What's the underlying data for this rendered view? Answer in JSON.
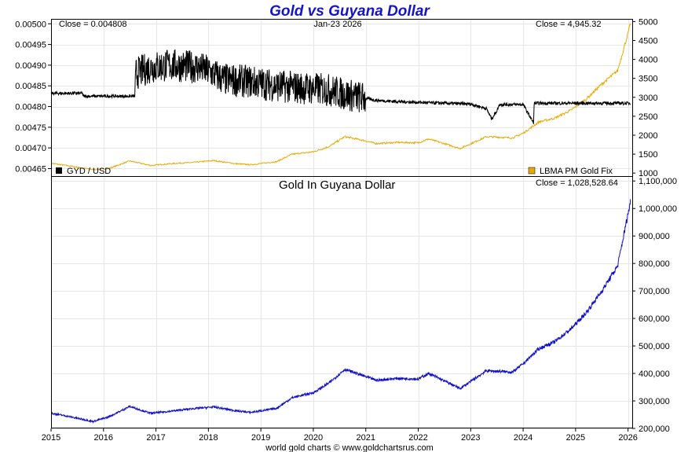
{
  "title": "Gold vs Guyana Dollar",
  "colors": {
    "title": "#1414cc",
    "gyd": "#000000",
    "gold": "#e8a900",
    "gold_gyd": "#1010cc",
    "grid": "#e6e6e6"
  },
  "chart_data": [
    {
      "type": "line",
      "panel": "top",
      "header_left": "Close = 0.004808",
      "header_center": "Jan-23  2026",
      "header_right": "Close = 4,945.32",
      "x_range": [
        2015.0,
        2026.08
      ],
      "y_left": {
        "range": [
          0.00463,
          0.00501
        ],
        "ticks": [
          0.00465,
          0.0047,
          0.00475,
          0.0048,
          0.00485,
          0.0049,
          0.00495,
          0.005
        ],
        "tick_labels": [
          "0.00465",
          "0.00470",
          "0.00475",
          "0.00480",
          "0.00485",
          "0.00490",
          "0.00495",
          "0.00500"
        ]
      },
      "y_right": {
        "range": [
          900,
          5050
        ],
        "ticks": [
          1000,
          1500,
          2000,
          2500,
          3000,
          3500,
          4000,
          4500,
          5000
        ],
        "tick_labels": [
          "1000",
          "1500",
          "2000",
          "2500",
          "3000",
          "3500",
          "4000",
          "4500",
          "5000"
        ]
      },
      "series": [
        {
          "name": "GYD / USD",
          "axis": "left",
          "color": "#000000",
          "x": [
            2015.0,
            2015.6,
            2015.61,
            2016.6,
            2016.62,
            2016.9,
            2017.3,
            2017.8,
            2018.0,
            2018.3,
            2018.8,
            2019.3,
            2019.8,
            2020.3,
            2020.6,
            2020.9,
            2021.2,
            2021.6,
            2022.0,
            2022.5,
            2023.0,
            2023.3,
            2023.4,
            2023.5,
            2023.55,
            2023.8,
            2024.0,
            2024.2,
            2024.21,
            2024.5,
            2025.0,
            2025.5,
            2026.05
          ],
          "values": [
            0.004832,
            0.004832,
            0.004825,
            0.004825,
            0.00488,
            0.004895,
            0.0049,
            0.004895,
            0.004885,
            0.004865,
            0.00486,
            0.00485,
            0.004845,
            0.00484,
            0.00483,
            0.004822,
            0.004815,
            0.004812,
            0.00481,
            0.004808,
            0.004806,
            0.004795,
            0.00477,
            0.00479,
            0.004805,
            0.004805,
            0.004805,
            0.00476,
            0.004808,
            0.004808,
            0.004808,
            0.004808,
            0.004808
          ],
          "noise": 2.5e-05,
          "noise_until": 2021.0
        },
        {
          "name": "LBMA PM Gold Fix",
          "axis": "right",
          "color": "#e8a900",
          "x": [
            2015.0,
            2015.3,
            2015.8,
            2016.1,
            2016.5,
            2016.9,
            2017.3,
            2017.7,
            2018.1,
            2018.5,
            2018.8,
            2019.3,
            2019.6,
            2020.0,
            2020.3,
            2020.6,
            2020.9,
            2021.2,
            2021.6,
            2022.0,
            2022.2,
            2022.8,
            2023.3,
            2023.8,
            2024.0,
            2024.3,
            2024.6,
            2024.9,
            2025.2,
            2025.5,
            2025.8,
            2026.05
          ],
          "values": [
            1260,
            1200,
            1090,
            1120,
            1320,
            1200,
            1250,
            1280,
            1330,
            1250,
            1220,
            1300,
            1500,
            1560,
            1700,
            1960,
            1880,
            1780,
            1810,
            1800,
            1900,
            1650,
            1960,
            1930,
            2050,
            2350,
            2450,
            2650,
            2950,
            3350,
            3700,
            4945
          ]
        }
      ],
      "legend": [
        "GYD / USD",
        "LBMA PM Gold Fix"
      ]
    },
    {
      "type": "line",
      "panel": "bottom",
      "subtitle": "Gold In Guyana Dollar",
      "header_right": "Close = 1,028,528.64",
      "x_range": [
        2015.0,
        2026.08
      ],
      "x_ticks": [
        2015,
        2016,
        2017,
        2018,
        2019,
        2020,
        2021,
        2022,
        2023,
        2024,
        2025,
        2026
      ],
      "x_tick_labels": [
        "2015",
        "2016",
        "2017",
        "2018",
        "2019",
        "2020",
        "2021",
        "2022",
        "2023",
        "2024",
        "2025",
        "2026"
      ],
      "y_range": [
        200000,
        1115000
      ],
      "y_ticks": [
        200000,
        300000,
        400000,
        500000,
        600000,
        700000,
        800000,
        900000,
        1000000,
        1100000
      ],
      "y_tick_labels": [
        "200,000",
        "300,000",
        "400,000",
        "500,000",
        "600,000",
        "700,000",
        "800,000",
        "900,000",
        "1,000,000",
        "1,100,000"
      ],
      "series": [
        {
          "name": "Gold In Guyana Dollar",
          "color": "#1010cc",
          "x": [
            2015.0,
            2015.3,
            2015.8,
            2016.1,
            2016.5,
            2016.9,
            2017.3,
            2017.7,
            2018.1,
            2018.5,
            2018.8,
            2019.3,
            2019.6,
            2020.0,
            2020.3,
            2020.6,
            2020.9,
            2021.2,
            2021.6,
            2022.0,
            2022.2,
            2022.8,
            2023.3,
            2023.8,
            2024.0,
            2024.3,
            2024.6,
            2024.9,
            2025.2,
            2025.5,
            2025.8,
            2026.05
          ],
          "values": [
            255000,
            245000,
            225000,
            242000,
            280000,
            255000,
            263000,
            272000,
            278000,
            265000,
            258000,
            273000,
            312000,
            330000,
            365000,
            415000,
            395000,
            375000,
            382000,
            380000,
            400000,
            345000,
            410000,
            405000,
            435000,
            490000,
            515000,
            560000,
            620000,
            700000,
            790000,
            1028528
          ]
        }
      ]
    }
  ],
  "footer": "world gold charts © www.goldchartsrus.com"
}
